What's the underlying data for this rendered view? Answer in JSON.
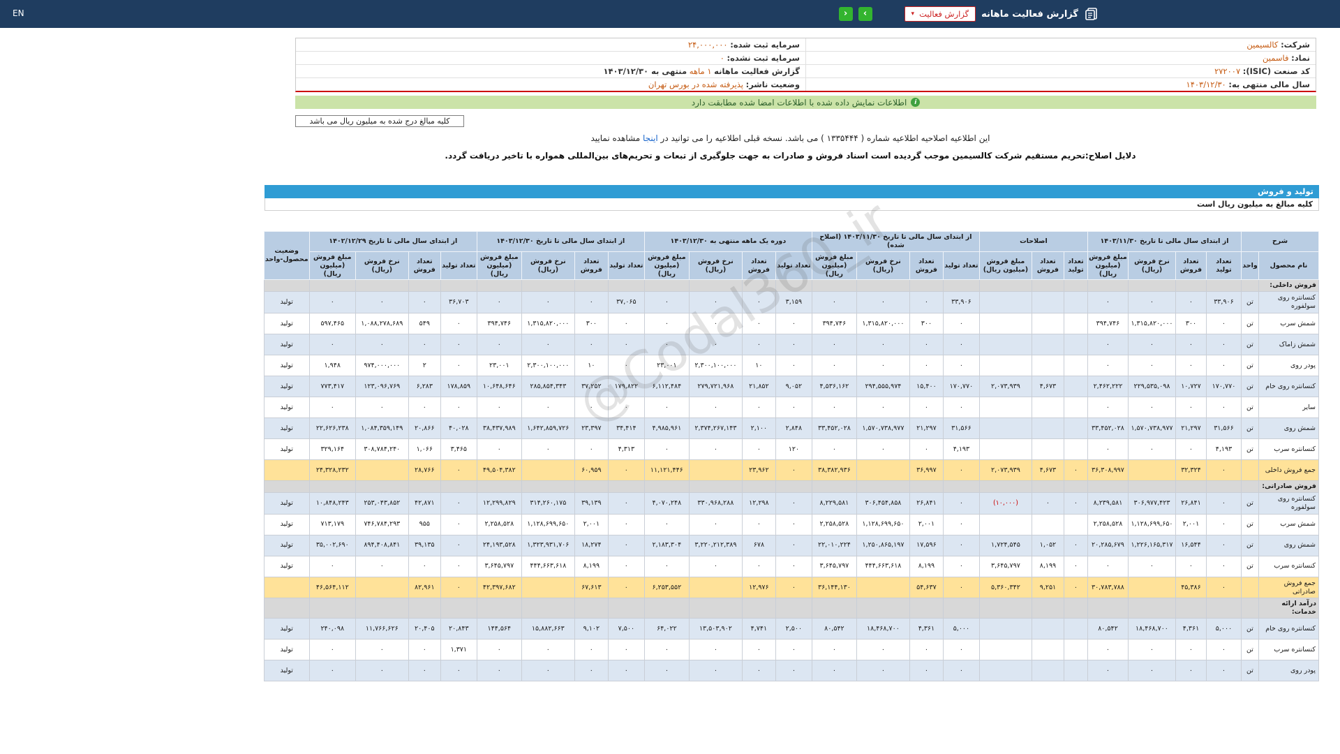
{
  "colors": {
    "topbar_bg": "#1f3d60",
    "accent_green": "#33b42f",
    "alert_red": "#cc2222",
    "value_orange": "#c55a11",
    "banner_green_bg": "#cbe3a8",
    "header_blue": "#b9cde3",
    "row_alt_blue": "#dce6f2",
    "section_gray": "#d8d8d8",
    "total_yellow": "#ffe299",
    "bar_blue": "#2f9cd4",
    "negative_red": "#cc0000"
  },
  "topbar": {
    "title": "گزارش فعالیت ماهانه",
    "dropdown_label": "گزارش فعالیت",
    "caret": "▾",
    "arrow_forward": "›",
    "arrow_back": "‹",
    "lang": "EN"
  },
  "info": {
    "right_rows": [
      {
        "label": "شرکت:",
        "value": "کالسیمین"
      },
      {
        "label": "نماد:",
        "value": "فاسمین"
      },
      {
        "label": "کد صنعت (ISIC):",
        "value": "۲۷۲۰۰۷"
      },
      {
        "label": "سال مالی منتهی به:",
        "value": "۱۴۰۳/۱۲/۳۰"
      }
    ],
    "left_rows": [
      {
        "label": "سرمایه ثبت شده:",
        "value": "۲۴,۰۰۰,۰۰۰"
      },
      {
        "label": "سرمایه ثبت نشده:",
        "value": "۰"
      },
      {
        "label": "گزارش فعالیت ماهانه",
        "highlight": "۱ ماهه",
        "tail": "منتهی به ۱۴۰۳/۱۲/۳۰"
      },
      {
        "label": "وضعیت ناشر:",
        "value": "پذیرفته شده در بورس تهران"
      }
    ]
  },
  "banner": {
    "text": "اطلاعات نمایش داده شده با اطلاعات امضا شده مطابقت دارد",
    "icon": "i"
  },
  "notes": {
    "box": "کلیه مبالغ درج شده به میلیون ریال می باشد",
    "units_row": "کلیه مبالغ به میلیون ریال است"
  },
  "amendment": {
    "pre": "این اطلاعیه اصلاحیه اطلاعیه شماره ( ۱۳۳۵۴۴۴ ) می باشد. نسخه قبلی اطلاعیه را می توانید در ",
    "link_text": "اینجا",
    "post": " مشاهده نمایید",
    "reason": "دلایل اصلاح:تحریم مستقیم شرکت کالسیمین موجب گردیده است اسناد فروش و صادرات به جهت جلوگیری از تبعات و تحریم‌های بین‌المللی همواره با تاخیر دریافت گردد."
  },
  "section": {
    "title": "تولید و فروش"
  },
  "watermark": {
    "text": "@Codal360_ir"
  },
  "table": {
    "columns": [
      {
        "label": "شرح",
        "subs": [
          "نام محصول",
          "واحد"
        ]
      },
      {
        "label": "از ابتدای سال مالی تا تاریخ ۱۴۰۳/۱۱/۳۰",
        "subs": [
          "تعداد تولید",
          "تعداد فروش",
          "نرخ فروش (ریال)",
          "مبلغ فروش (میلیون ریال)"
        ]
      },
      {
        "label": "اصلاحات",
        "subs": [
          "تعداد تولید",
          "تعداد فروش",
          "مبلغ فروش (میلیون ریال)"
        ]
      },
      {
        "label": "از ابتدای سال مالی تا تاریخ ۱۴۰۳/۱۱/۳۰ (اصلاح شده)",
        "subs": [
          "تعداد تولید",
          "تعداد فروش",
          "نرخ فروش (ریال)",
          "مبلغ فروش (میلیون ریال)"
        ]
      },
      {
        "label": "دوره یک ماهه منتهی به ۱۴۰۳/۱۲/۳۰",
        "subs": [
          "تعداد تولید",
          "تعداد فروش",
          "نرخ فروش (ریال)",
          "مبلغ فروش (میلیون ریال)"
        ]
      },
      {
        "label": "از ابتدای سال مالی تا تاریخ ۱۴۰۳/۱۲/۳۰",
        "subs": [
          "تعداد تولید",
          "تعداد فروش",
          "نرخ فروش (ریال)",
          "مبلغ فروش (میلیون ریال)"
        ]
      },
      {
        "label": "از ابتدای سال مالی تا تاریخ ۱۴۰۲/۱۲/۲۹",
        "subs": [
          "تعداد تولید",
          "تعداد فروش",
          "نرخ فروش (ریال)",
          "مبلغ فروش (میلیون ریال)"
        ]
      },
      {
        "label": "وضعیت محصول-واحد",
        "subs": []
      }
    ],
    "rows": [
      {
        "type": "section",
        "name": "فروش داخلی:"
      },
      {
        "type": "data",
        "name": "کنسانتره روی سولفوره",
        "unit": "تن",
        "status": "تولید",
        "cells": [
          "۳۳,۹۰۶",
          "۰",
          "۰",
          "۰",
          "",
          "",
          "",
          "۳۳,۹۰۶",
          "۰",
          "۰",
          "۰",
          "۳,۱۵۹",
          "۰",
          "۰",
          "۰",
          "۳۷,۰۶۵",
          "۰",
          "۰",
          "۰",
          "۳۶,۷۰۳",
          "۰",
          "۰",
          "۰"
        ]
      },
      {
        "type": "data",
        "name": "شمش سرب",
        "unit": "تن",
        "status": "تولید",
        "cells": [
          "۰",
          "۳۰۰",
          "۱,۳۱۵,۸۲۰,۰۰۰",
          "۳۹۴,۷۴۶",
          "",
          "",
          "",
          "۰",
          "۳۰۰",
          "۱,۳۱۵,۸۲۰,۰۰۰",
          "۳۹۴,۷۴۶",
          "۰",
          "۰",
          "۰",
          "۰",
          "۰",
          "۳۰۰",
          "۱,۳۱۵,۸۲۰,۰۰۰",
          "۳۹۴,۷۴۶",
          "۰",
          "۵۴۹",
          "۱,۰۸۸,۲۷۸,۶۸۹",
          "۵۹۷,۴۶۵"
        ]
      },
      {
        "type": "data",
        "name": "شمش زاماک",
        "unit": "تن",
        "status": "تولید",
        "cells": [
          "۰",
          "۰",
          "۰",
          "۰",
          "",
          "",
          "",
          "۰",
          "۰",
          "۰",
          "۰",
          "۰",
          "۰",
          "۰",
          "۰",
          "۰",
          "۰",
          "۰",
          "۰",
          "۰",
          "۰",
          "۰",
          "۰"
        ]
      },
      {
        "type": "data",
        "name": "پودر روی",
        "unit": "تن",
        "status": "تولید",
        "cells": [
          "۰",
          "۰",
          "۰",
          "۰",
          "",
          "",
          "",
          "۰",
          "۰",
          "۰",
          "۰",
          "۰",
          "۱۰",
          "۲,۳۰۰,۱۰۰,۰۰۰",
          "۲۳,۰۰۱",
          "۰",
          "۱۰",
          "۲,۳۰۰,۱۰۰,۰۰۰",
          "۲۳,۰۰۱",
          "۰",
          "۲",
          "۹۷۴,۰۰۰,۰۰۰",
          "۱,۹۴۸"
        ]
      },
      {
        "type": "data",
        "name": "کنسانتره روی خام",
        "unit": "تن",
        "status": "تولید",
        "cells": [
          "۱۷۰,۷۷۰",
          "۱۰,۷۲۷",
          "۲۲۹,۵۳۵,۰۹۸",
          "۲,۴۶۲,۲۲۲",
          "",
          "۴,۶۷۳",
          "۲,۰۷۳,۹۳۹",
          "۱۷۰,۷۷۰",
          "۱۵,۴۰۰",
          "۲۹۴,۵۵۵,۹۷۴",
          "۴,۵۳۶,۱۶۲",
          "۹,۰۵۲",
          "۲۱,۸۵۲",
          "۲۷۹,۷۲۱,۹۶۸",
          "۶,۱۱۲,۴۸۴",
          "۱۷۹,۸۲۲",
          "۳۷,۲۵۲",
          "۲۸۵,۸۵۴,۳۴۳",
          "۱۰,۶۴۸,۶۴۶",
          "۱۷۸,۸۵۹",
          "۶,۲۸۳",
          "۱۲۳,۰۹۶,۷۶۹",
          "۷۷۳,۴۱۷"
        ]
      },
      {
        "type": "data",
        "name": "سایر",
        "unit": "تن",
        "status": "تولید",
        "cells": [
          "۰",
          "۰",
          "۰",
          "۰",
          "",
          "",
          "",
          "۰",
          "۰",
          "۰",
          "۰",
          "۰",
          "۰",
          "۰",
          "۰",
          "۰",
          "۰",
          "۰",
          "۰",
          "۰",
          "۰",
          "۰",
          "۰"
        ]
      },
      {
        "type": "data",
        "name": "شمش روی",
        "unit": "تن",
        "status": "تولید",
        "cells": [
          "۳۱,۵۶۶",
          "۲۱,۲۹۷",
          "۱,۵۷۰,۷۳۸,۹۷۷",
          "۳۳,۴۵۲,۰۲۸",
          "",
          "",
          "",
          "۳۱,۵۶۶",
          "۲۱,۲۹۷",
          "۱,۵۷۰,۷۳۸,۹۷۷",
          "۳۳,۴۵۲,۰۲۸",
          "۲,۸۴۸",
          "۲,۱۰۰",
          "۲,۳۷۴,۲۶۷,۱۴۳",
          "۴,۹۸۵,۹۶۱",
          "۳۴,۴۱۴",
          "۲۳,۳۹۷",
          "۱,۶۴۲,۸۵۹,۷۲۶",
          "۳۸,۴۳۷,۹۸۹",
          "۴۰,۰۲۸",
          "۲۰,۸۶۶",
          "۱,۰۸۴,۳۵۹,۱۴۹",
          "۲۲,۶۲۶,۲۳۸"
        ]
      },
      {
        "type": "data",
        "name": "کنسانتره سرب",
        "unit": "تن",
        "status": "تولید",
        "cells": [
          "۴,۱۹۳",
          "۰",
          "۰",
          "۰",
          "",
          "",
          "",
          "۴,۱۹۳",
          "۰",
          "۰",
          "۰",
          "۱۲۰",
          "۰",
          "۰",
          "۰",
          "۴,۳۱۳",
          "۰",
          "۰",
          "۰",
          "۳,۴۶۵",
          "۱,۰۶۶",
          "۳۰۸,۷۸۴,۲۴۰",
          "۳۲۹,۱۶۴"
        ]
      },
      {
        "type": "total",
        "name": "جمع فروش داخلی",
        "unit": "",
        "status": "",
        "cells": [
          "۰",
          "۳۲,۳۲۴",
          "",
          "۳۶,۳۰۸,۹۹۷",
          "۰",
          "۴,۶۷۳",
          "۲,۰۷۳,۹۳۹",
          "۰",
          "۳۶,۹۹۷",
          "",
          "۳۸,۳۸۲,۹۳۶",
          "۰",
          "۲۳,۹۶۲",
          "",
          "۱۱,۱۲۱,۴۴۶",
          "۰",
          "۶۰,۹۵۹",
          "",
          "۴۹,۵۰۴,۳۸۲",
          "۰",
          "۲۸,۷۶۶",
          "",
          "۲۴,۳۲۸,۲۳۲"
        ]
      },
      {
        "type": "section",
        "name": "فروش صادراتی:"
      },
      {
        "type": "data",
        "name": "کنسانتره روی سولفوره",
        "unit": "تن",
        "status": "تولید",
        "cells": [
          "۰",
          "۲۶,۸۴۱",
          "۳۰۶,۹۷۷,۴۲۳",
          "۸,۲۳۹,۵۸۱",
          "۰",
          "۰",
          "(۱۰,۰۰۰)",
          "۰",
          "۲۶,۸۴۱",
          "۳۰۶,۴۵۴,۸۵۸",
          "۸,۲۲۹,۵۸۱",
          "۰",
          "۱۲,۲۹۸",
          "۳۳۰,۹۶۸,۲۸۸",
          "۴,۰۷۰,۲۴۸",
          "۰",
          "۳۹,۱۳۹",
          "۳۱۴,۲۶۰,۱۷۵",
          "۱۲,۲۹۹,۸۲۹",
          "۰",
          "۴۲,۸۷۱",
          "۲۵۳,۰۴۳,۸۵۲",
          "۱۰,۸۴۸,۲۴۳"
        ]
      },
      {
        "type": "data",
        "name": "شمش سرب",
        "unit": "تن",
        "status": "تولید",
        "cells": [
          "۰",
          "۲,۰۰۱",
          "۱,۱۲۸,۶۹۹,۶۵۰",
          "۲,۲۵۸,۵۲۸",
          "",
          "",
          "",
          "۰",
          "۲,۰۰۱",
          "۱,۱۲۸,۶۹۹,۶۵۰",
          "۲,۲۵۸,۵۲۸",
          "۰",
          "۰",
          "۰",
          "۰",
          "۰",
          "۲,۰۰۱",
          "۱,۱۲۸,۶۹۹,۶۵۰",
          "۲,۲۵۸,۵۲۸",
          "۰",
          "۹۵۵",
          "۷۴۶,۷۸۴,۲۹۳",
          "۷۱۳,۱۷۹"
        ]
      },
      {
        "type": "data",
        "name": "شمش روی",
        "unit": "تن",
        "status": "تولید",
        "cells": [
          "۰",
          "۱۶,۵۴۴",
          "۱,۲۲۶,۱۶۵,۳۱۷",
          "۲۰,۲۸۵,۶۷۹",
          "۰",
          "۱,۰۵۲",
          "۱,۷۲۴,۵۴۵",
          "۰",
          "۱۷,۵۹۶",
          "۱,۲۵۰,۸۶۵,۱۹۷",
          "۲۲,۰۱۰,۲۲۴",
          "۰",
          "۶۷۸",
          "۳,۲۲۰,۲۱۲,۳۸۹",
          "۲,۱۸۳,۳۰۴",
          "۰",
          "۱۸,۲۷۴",
          "۱,۳۲۳,۹۳۱,۷۰۶",
          "۲۴,۱۹۳,۵۲۸",
          "۰",
          "۳۹,۱۳۵",
          "۸۹۴,۴۰۸,۸۴۱",
          "۳۵,۰۰۲,۶۹۰"
        ]
      },
      {
        "type": "data",
        "name": "کنسانتره سرب",
        "unit": "تن",
        "status": "تولید",
        "cells": [
          "۰",
          "۰",
          "۰",
          "۰",
          "۰",
          "۸,۱۹۹",
          "۳,۶۴۵,۷۹۷",
          "۰",
          "۸,۱۹۹",
          "۴۴۴,۶۶۳,۶۱۸",
          "۳,۶۴۵,۷۹۷",
          "۰",
          "۰",
          "۰",
          "۰",
          "۰",
          "۸,۱۹۹",
          "۴۴۴,۶۶۳,۶۱۸",
          "۳,۶۴۵,۷۹۷",
          "۰",
          "۰",
          "۰",
          "۰"
        ]
      },
      {
        "type": "total",
        "name": "جمع فروش صادراتی",
        "unit": "",
        "status": "",
        "cells": [
          "۰",
          "۴۵,۳۸۶",
          "",
          "۳۰,۷۸۳,۷۸۸",
          "۰",
          "۹,۲۵۱",
          "۵,۳۶۰,۳۴۲",
          "۰",
          "۵۴,۶۳۷",
          "",
          "۳۶,۱۴۴,۱۳۰",
          "۰",
          "۱۲,۹۷۶",
          "",
          "۶,۲۵۳,۵۵۲",
          "۰",
          "۶۷,۶۱۳",
          "",
          "۴۲,۳۹۷,۶۸۲",
          "۰",
          "۸۲,۹۶۱",
          "",
          "۴۶,۵۶۴,۱۱۲"
        ]
      },
      {
        "type": "section",
        "name": "درآمد ارائه خدمات:"
      },
      {
        "type": "data",
        "name": "کنسانتره روی خام",
        "unit": "تن",
        "status": "تولید",
        "cells": [
          "۵,۰۰۰",
          "۴,۳۶۱",
          "۱۸,۴۶۸,۷۰۰",
          "۸۰,۵۴۲",
          "",
          "",
          "",
          "۵,۰۰۰",
          "۴,۳۶۱",
          "۱۸,۴۶۸,۷۰۰",
          "۸۰,۵۴۲",
          "۲,۵۰۰",
          "۴,۷۴۱",
          "۱۳,۵۰۳,۹۰۲",
          "۶۴,۰۲۲",
          "۷,۵۰۰",
          "۹,۱۰۲",
          "۱۵,۸۸۲,۶۶۳",
          "۱۴۴,۵۶۴",
          "۲۰,۸۴۳",
          "۲۰,۴۰۵",
          "۱۱,۷۶۶,۶۲۶",
          "۲۴۰,۰۹۸"
        ]
      },
      {
        "type": "data",
        "name": "کنسانتره سرب",
        "unit": "تن",
        "status": "تولید",
        "cells": [
          "۰",
          "۰",
          "۰",
          "۰",
          "",
          "",
          "",
          "۰",
          "۰",
          "۰",
          "۰",
          "۰",
          "۰",
          "۰",
          "۰",
          "۰",
          "۰",
          "۰",
          "۰",
          "۱,۳۷۱",
          "۰",
          "۰",
          "۰"
        ]
      },
      {
        "type": "data",
        "name": "پودر روی",
        "unit": "تن",
        "status": "تولید",
        "cells": [
          "۰",
          "۰",
          "۰",
          "۰",
          "",
          "",
          "",
          "۰",
          "۰",
          "۰",
          "۰",
          "۰",
          "۰",
          "۰",
          "۰",
          "۰",
          "۰",
          "۰",
          "۰",
          "۰",
          "۰",
          "۰",
          "۰"
        ]
      }
    ]
  }
}
